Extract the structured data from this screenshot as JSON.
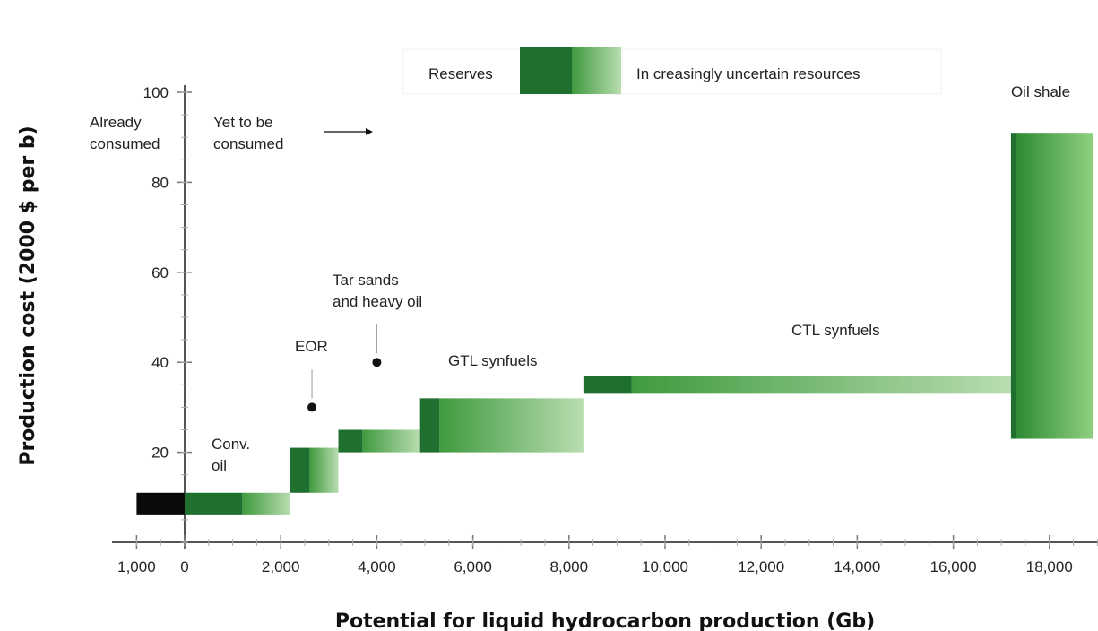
{
  "chart_data": {
    "type": "bar",
    "xlabel": "Potential for liquid hydrocarbon production (Gb)",
    "ylabel": "Production cost (2000 $ per b)",
    "xlim": [
      -1000,
      19300
    ],
    "ylim": [
      0,
      100
    ],
    "x_ticks": [
      {
        "value": -1000,
        "label": "1,000"
      },
      {
        "value": 0,
        "label": "0"
      },
      {
        "value": 2000,
        "label": "2,000"
      },
      {
        "value": 4000,
        "label": "4,000"
      },
      {
        "value": 6000,
        "label": "6,000"
      },
      {
        "value": 8000,
        "label": "8,000"
      },
      {
        "value": 10000,
        "label": "10,000"
      },
      {
        "value": 12000,
        "label": "12,000"
      },
      {
        "value": 14000,
        "label": "14,000"
      },
      {
        "value": 16000,
        "label": "16,000"
      },
      {
        "value": 18000,
        "label": "18,000"
      }
    ],
    "y_ticks": [
      {
        "value": 20,
        "label": "20"
      },
      {
        "value": 40,
        "label": "40"
      },
      {
        "value": 60,
        "label": "60"
      },
      {
        "value": 80,
        "label": "80"
      },
      {
        "value": 100,
        "label": "100"
      }
    ],
    "legend": {
      "placement": "top-center",
      "reserves_label": "Reserves",
      "uncertain_label": "In creasingly uncertain resources"
    },
    "annotations": {
      "already_consumed": [
        "Already",
        "consumed"
      ],
      "yet_to_be_consumed": [
        "Yet to be",
        "consumed"
      ]
    },
    "resources": [
      {
        "name": "Already consumed",
        "x0": -1000,
        "x1": 0,
        "y0": 6,
        "y1": 11,
        "kind": "consumed"
      },
      {
        "name": "Conv. oil",
        "label_lines": [
          "Conv.",
          "oil"
        ],
        "x0": 0,
        "x1": 2200,
        "y0": 6,
        "y1": 11,
        "reserves_end": 1200
      },
      {
        "name": "EOR",
        "label_lines": [
          "EOR"
        ],
        "x0": 2200,
        "x1": 3200,
        "y0": 11,
        "y1": 21,
        "reserves_end": 2600,
        "point": {
          "x": 2650,
          "y": 30
        }
      },
      {
        "name": "Tar sands and heavy oil",
        "label_lines": [
          "Tar sands",
          "and heavy oil"
        ],
        "x0": 3200,
        "x1": 4900,
        "y0": 20,
        "y1": 25,
        "reserves_end": 3700,
        "point": {
          "x": 4000,
          "y": 40
        }
      },
      {
        "name": "GTL synfuels",
        "label_lines": [
          "GTL synfuels"
        ],
        "x0": 4900,
        "x1": 8300,
        "y0": 20,
        "y1": 32,
        "reserves_end": 5300
      },
      {
        "name": "CTL synfuels",
        "label_lines": [
          "CTL synfuels"
        ],
        "x0": 8300,
        "x1": 17200,
        "y0": 33,
        "y1": 37,
        "reserves_end": 9300
      },
      {
        "name": "Oil shale",
        "label_lines": [
          "Oil shale"
        ],
        "x0": 17200,
        "x1": 18900,
        "y0": 23,
        "y1": 91,
        "reserves_end": 17300
      }
    ]
  },
  "colors": {
    "consumed": "#0a0a0a",
    "reserves": "#1f6f2e",
    "resource_mid": "#3f9a3f",
    "resource_light": "#b9ddb0",
    "axis": "#555555"
  }
}
